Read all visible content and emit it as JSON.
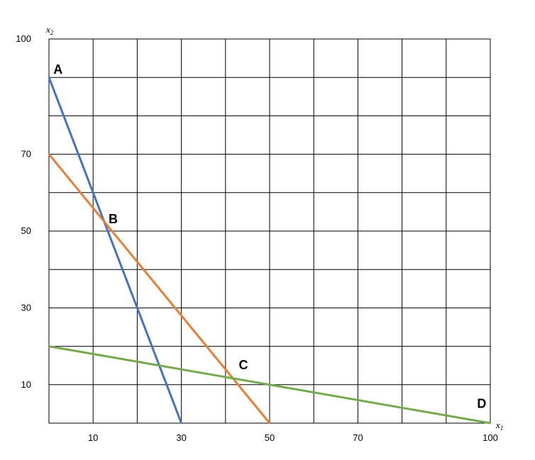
{
  "chart_data": {
    "type": "line",
    "title": "",
    "xlabel": {
      "base": "x",
      "sub": "1"
    },
    "ylabel": {
      "base": "x",
      "sub": "2"
    },
    "xlim": [
      0,
      100
    ],
    "ylim": [
      0,
      100
    ],
    "grid": true,
    "x_gridlines": [
      10,
      20,
      30,
      40,
      50,
      60,
      70,
      80,
      90,
      100
    ],
    "y_gridlines": [
      10,
      20,
      30,
      40,
      50,
      60,
      70,
      80,
      90,
      100
    ],
    "x_tick_labels": [
      {
        "value": 10,
        "label": "10"
      },
      {
        "value": 30,
        "label": "30"
      },
      {
        "value": 50,
        "label": "50"
      },
      {
        "value": 70,
        "label": "70"
      },
      {
        "value": 100,
        "label": "100"
      }
    ],
    "y_tick_labels": [
      {
        "value": 10,
        "label": "10"
      },
      {
        "value": 30,
        "label": "30"
      },
      {
        "value": 50,
        "label": "50"
      },
      {
        "value": 70,
        "label": "70"
      },
      {
        "value": 100,
        "label": "100"
      }
    ],
    "series": [
      {
        "color": "#4472C4",
        "points": [
          [
            0,
            90
          ],
          [
            30,
            0
          ]
        ]
      },
      {
        "color": "#ED7D31",
        "points": [
          [
            0,
            70
          ],
          [
            50,
            0
          ]
        ]
      },
      {
        "color": "#70AD47",
        "points": [
          [
            0,
            20
          ],
          [
            100,
            0
          ]
        ]
      }
    ],
    "annotations": [
      {
        "text": "A",
        "x": 1,
        "y": 91
      },
      {
        "text": "B",
        "x": 13.5,
        "y": 52
      },
      {
        "text": "C",
        "x": 43,
        "y": 14
      },
      {
        "text": "D",
        "x": 97,
        "y": 4
      }
    ]
  }
}
